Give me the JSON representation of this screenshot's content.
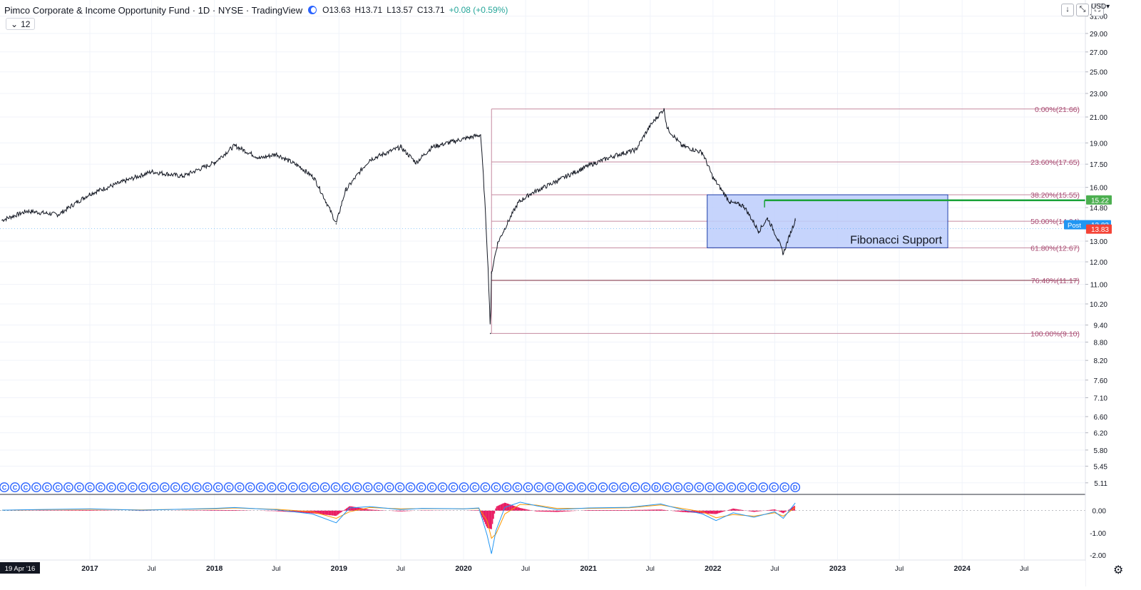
{
  "header": {
    "title": "Pimco Corporate & Income Opportunity Fund · 1D · NYSE · TradingView",
    "ohlc": {
      "o": "O13.63",
      "h": "H13.71",
      "l": "L13.57",
      "c": "C13.71",
      "change": "+0.08 (+0.59%)"
    },
    "interval_badge": "12",
    "currency": "USD",
    "controls": [
      "↓",
      "⤡",
      "⛶"
    ]
  },
  "colors": {
    "fib_line": "#c58a9f",
    "fib_label": "#a84a72",
    "zone_fill": "#bccdfb",
    "zone_border": "#1f3ea8",
    "resistance": "#1aa23a",
    "candles": "#131722",
    "macd_line": "#2196f3",
    "signal_line": "#ff9800",
    "histogram": "#e91e63",
    "post_badge": "#2196f3",
    "price_badge": "#f44336",
    "green_badge": "#4caf50"
  },
  "chart_data": [
    {
      "type": "line",
      "scale": "log",
      "ylim": [
        4.9,
        33.0
      ],
      "xlim": [
        "2016-04-19",
        "2024-11-30"
      ],
      "y_ticks": [
        "31.00",
        "29.00",
        "27.00",
        "25.00",
        "23.00",
        "21.00",
        "19.00",
        "17.50",
        "16.00",
        "14.80",
        "13.00",
        "12.00",
        "11.00",
        "10.20",
        "9.40",
        "8.80",
        "8.20",
        "7.60",
        "7.10",
        "6.60",
        "6.20",
        "5.80",
        "5.45",
        "5.11"
      ],
      "x_ticks": [
        {
          "label": "19 Apr '16",
          "date": "2016-04-19"
        },
        {
          "label": "2017",
          "date": "2017-01-01"
        },
        {
          "label": "Jul",
          "date": "2017-07-01"
        },
        {
          "label": "2018",
          "date": "2018-01-01"
        },
        {
          "label": "Jul",
          "date": "2018-07-01"
        },
        {
          "label": "2019",
          "date": "2019-01-01"
        },
        {
          "label": "Jul",
          "date": "2019-07-01"
        },
        {
          "label": "2020",
          "date": "2020-01-01"
        },
        {
          "label": "Jul",
          "date": "2020-07-01"
        },
        {
          "label": "2021",
          "date": "2021-01-01"
        },
        {
          "label": "Jul",
          "date": "2021-07-01"
        },
        {
          "label": "2022",
          "date": "2022-01-01"
        },
        {
          "label": "Jul",
          "date": "2022-07-01"
        },
        {
          "label": "2023",
          "date": "2023-01-01"
        },
        {
          "label": "Jul",
          "date": "2023-07-01"
        },
        {
          "label": "2024",
          "date": "2024-01-01"
        },
        {
          "label": "Jul",
          "date": "2024-07-01"
        }
      ],
      "price_series": {
        "dates": [
          "2016-04-19",
          "2016-07-01",
          "2016-10-01",
          "2017-01-01",
          "2017-04-01",
          "2017-07-01",
          "2017-10-01",
          "2018-01-01",
          "2018-03-01",
          "2018-05-15",
          "2018-07-01",
          "2018-09-10",
          "2018-10-20",
          "2018-12-24",
          "2019-01-20",
          "2019-04-01",
          "2019-07-01",
          "2019-08-15",
          "2019-10-01",
          "2020-01-01",
          "2020-02-20",
          "2020-03-20",
          "2020-03-23",
          "2020-04-10",
          "2020-06-10",
          "2020-07-15",
          "2020-10-01",
          "2021-01-01",
          "2021-03-20",
          "2021-05-20",
          "2021-07-01",
          "2021-08-10",
          "2021-08-20",
          "2021-10-01",
          "2021-12-01",
          "2022-01-01",
          "2022-02-20",
          "2022-04-01",
          "2022-05-15",
          "2022-06-10",
          "2022-07-10",
          "2022-07-26",
          "2022-08-30"
        ],
        "values": [
          14.1,
          14.6,
          14.4,
          15.6,
          16.3,
          17.0,
          16.7,
          17.6,
          18.8,
          17.9,
          18.2,
          17.3,
          16.6,
          13.9,
          15.8,
          17.8,
          18.7,
          17.6,
          18.7,
          19.3,
          19.6,
          9.1,
          11.5,
          12.9,
          15.1,
          15.6,
          16.4,
          17.4,
          18.1,
          18.5,
          20.3,
          21.66,
          20.1,
          18.8,
          18.3,
          16.6,
          15.1,
          14.9,
          13.5,
          14.2,
          13.1,
          12.38,
          14.1
        ]
      },
      "fibonacci": {
        "start": "2020-03-23",
        "end": "2024-12-31",
        "levels": [
          {
            "label": "0.00%(21.66)",
            "value": 21.66
          },
          {
            "label": "23.60%(17.65)",
            "value": 17.65
          },
          {
            "label": "38.20%(15.55)",
            "value": 15.55
          },
          {
            "label": "50.00%(14.04)",
            "value": 14.04
          },
          {
            "label": "61.80%(12.67)",
            "value": 12.67
          },
          {
            "label": "76.40%(11.17)",
            "value": 11.17
          },
          {
            "label": "100.00%(9.10)",
            "value": 9.1
          }
        ]
      },
      "support_zone": {
        "label": "Fibonacci Support",
        "x_start": "2021-12-15",
        "x_end": "2023-11-20",
        "y_top": 15.55,
        "y_bottom": 12.67
      },
      "resistance_line": {
        "value": 15.22,
        "x_start": "2022-06-01"
      },
      "price_badges": [
        {
          "label": "15.22",
          "kind": "green",
          "value": 15.22
        },
        {
          "label": "Post",
          "value_label": "13.83",
          "kind": "post",
          "value": 13.83
        },
        {
          "label": "13.83",
          "kind": "price",
          "value": 13.6
        }
      ],
      "dividend_marker_letters": [
        "C",
        "D"
      ]
    },
    {
      "type": "line",
      "ylim": [
        -2.2,
        0.7
      ],
      "y_ticks": [
        "0.00",
        "-1.00",
        "-2.00"
      ],
      "macd": {
        "dates": [
          "2016-04-19",
          "2016-08-01",
          "2017-01-01",
          "2017-06-01",
          "2018-01-01",
          "2018-03-01",
          "2018-07-01",
          "2018-10-15",
          "2018-12-24",
          "2019-02-01",
          "2019-04-01",
          "2019-07-01",
          "2019-09-01",
          "2020-01-01",
          "2020-02-15",
          "2020-03-10",
          "2020-03-23",
          "2020-04-05",
          "2020-05-01",
          "2020-06-15",
          "2020-08-01",
          "2020-10-01",
          "2021-01-01",
          "2021-05-01",
          "2021-08-01",
          "2021-10-01",
          "2021-12-01",
          "2022-01-10",
          "2022-03-01",
          "2022-05-01",
          "2022-07-01",
          "2022-07-26",
          "2022-08-30"
        ],
        "macd": [
          0.02,
          0.05,
          0.08,
          0.02,
          0.1,
          0.14,
          0.04,
          -0.15,
          -0.55,
          0.12,
          0.18,
          0.05,
          0.1,
          0.08,
          0.12,
          -1.1,
          -1.95,
          -0.9,
          0.15,
          0.38,
          0.22,
          0.05,
          0.12,
          0.15,
          0.3,
          0.05,
          -0.15,
          -0.45,
          -0.1,
          -0.3,
          -0.05,
          -0.35,
          0.35
        ],
        "signal": [
          0.02,
          0.04,
          0.06,
          0.03,
          0.08,
          0.12,
          0.06,
          -0.05,
          -0.35,
          -0.05,
          0.14,
          0.08,
          0.09,
          0.08,
          0.1,
          -0.45,
          -1.25,
          -1.05,
          -0.15,
          0.28,
          0.25,
          0.1,
          0.1,
          0.13,
          0.26,
          0.1,
          -0.05,
          -0.32,
          -0.18,
          -0.25,
          -0.1,
          -0.25,
          0.15
        ]
      }
    }
  ]
}
